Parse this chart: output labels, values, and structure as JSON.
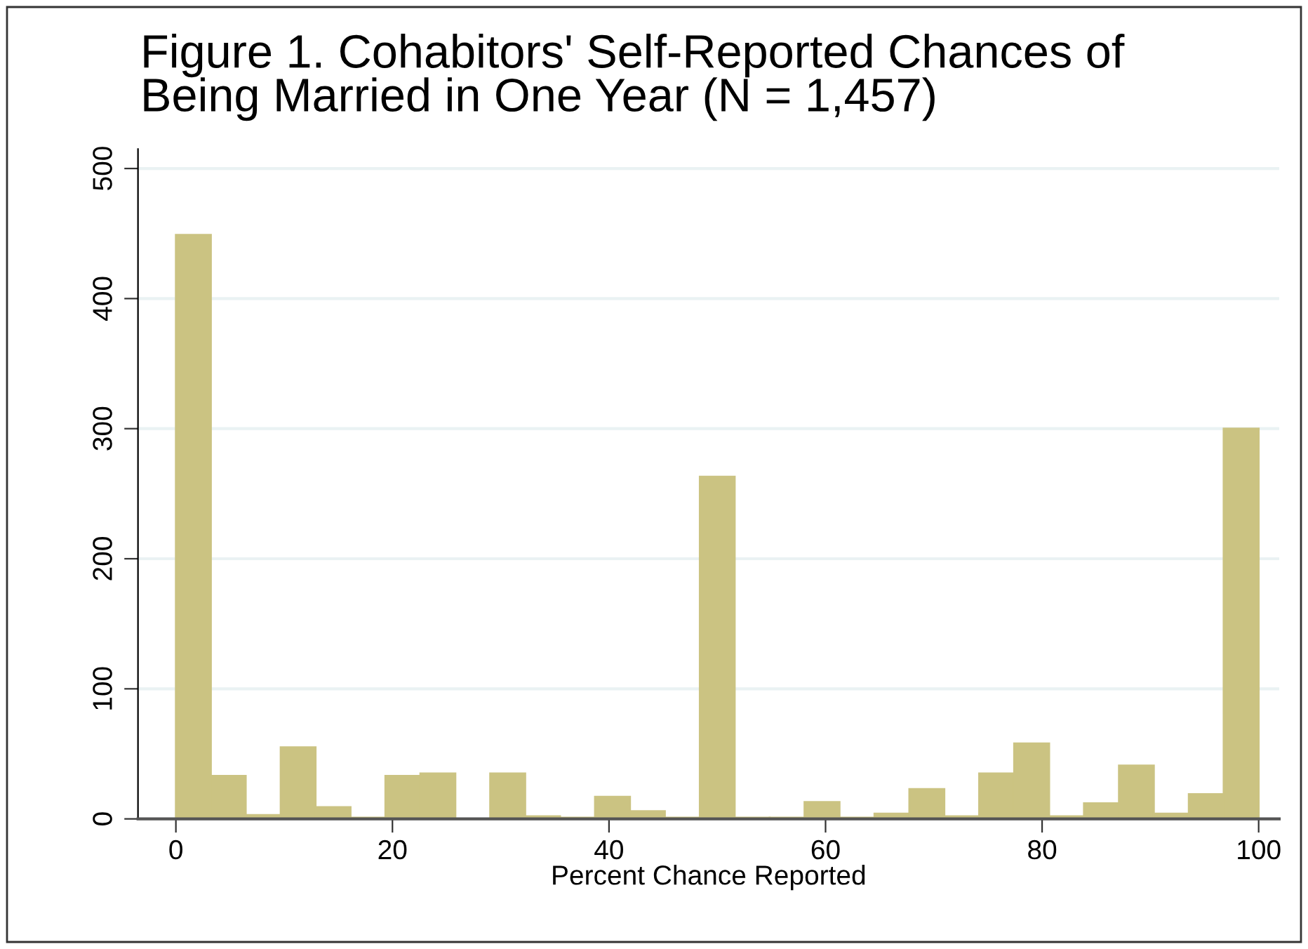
{
  "chart_data": {
    "type": "histogram",
    "title": "Figure 1. Cohabitors' Self-Reported Chances of\nBeing Married in One Year (N = 1,457)",
    "xlabel": "Percent Chance Reported",
    "bins": [
      0,
      3.23,
      6.45,
      9.68,
      12.9,
      16.13,
      19.35,
      22.58,
      25.81,
      29.03,
      32.26,
      35.48,
      38.71,
      41.94,
      45.16,
      48.39,
      51.61,
      54.84,
      58.06,
      61.29,
      64.52,
      67.74,
      70.97,
      74.19,
      77.42,
      80.65,
      83.87,
      87.1,
      90.32,
      93.55,
      96.77,
      100
    ],
    "values": [
      449,
      33,
      3,
      55,
      9,
      1,
      33,
      35,
      0,
      35,
      2,
      1,
      17,
      6,
      1,
      263,
      1,
      1,
      13,
      1,
      4,
      23,
      2,
      35,
      58,
      2,
      12,
      41,
      4,
      19,
      300
    ],
    "color": "#cbc382",
    "xlim": [
      -3.5,
      101.9
    ],
    "ylim": [
      0,
      515
    ],
    "xticks": [
      0,
      20,
      40,
      60,
      80,
      100
    ],
    "yticks": [
      0,
      100,
      200,
      300,
      400,
      500
    ],
    "grid": "y"
  }
}
